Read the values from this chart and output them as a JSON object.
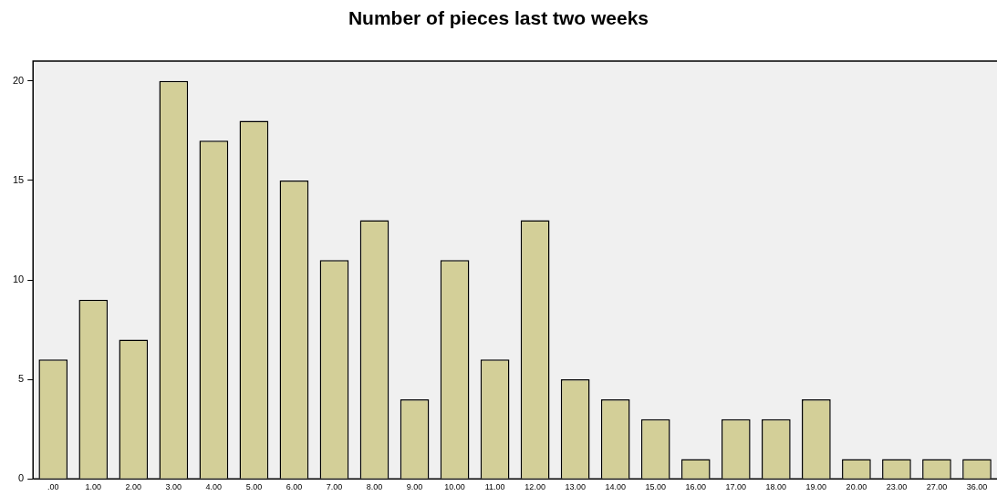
{
  "chart_data": {
    "type": "bar",
    "title": "Number of pieces last two weeks",
    "categories": [
      ".00",
      "1.00",
      "2.00",
      "3.00",
      "4.00",
      "5.00",
      "6.00",
      "7.00",
      "8.00",
      "9.00",
      "10.00",
      "11.00",
      "12.00",
      "13.00",
      "14.00",
      "15.00",
      "16.00",
      "17.00",
      "18.00",
      "19.00",
      "20.00",
      "23.00",
      "27.00",
      "36.00"
    ],
    "values": [
      6,
      9,
      7,
      20,
      17,
      18,
      15,
      11,
      13,
      4,
      11,
      6,
      13,
      5,
      4,
      3,
      1,
      3,
      3,
      4,
      1,
      1,
      1,
      1
    ],
    "color": "#d3cf98",
    "ylim": [
      0,
      21
    ],
    "yticks": [
      0,
      5,
      10,
      15,
      20
    ],
    "grid": false,
    "legend": false
  }
}
